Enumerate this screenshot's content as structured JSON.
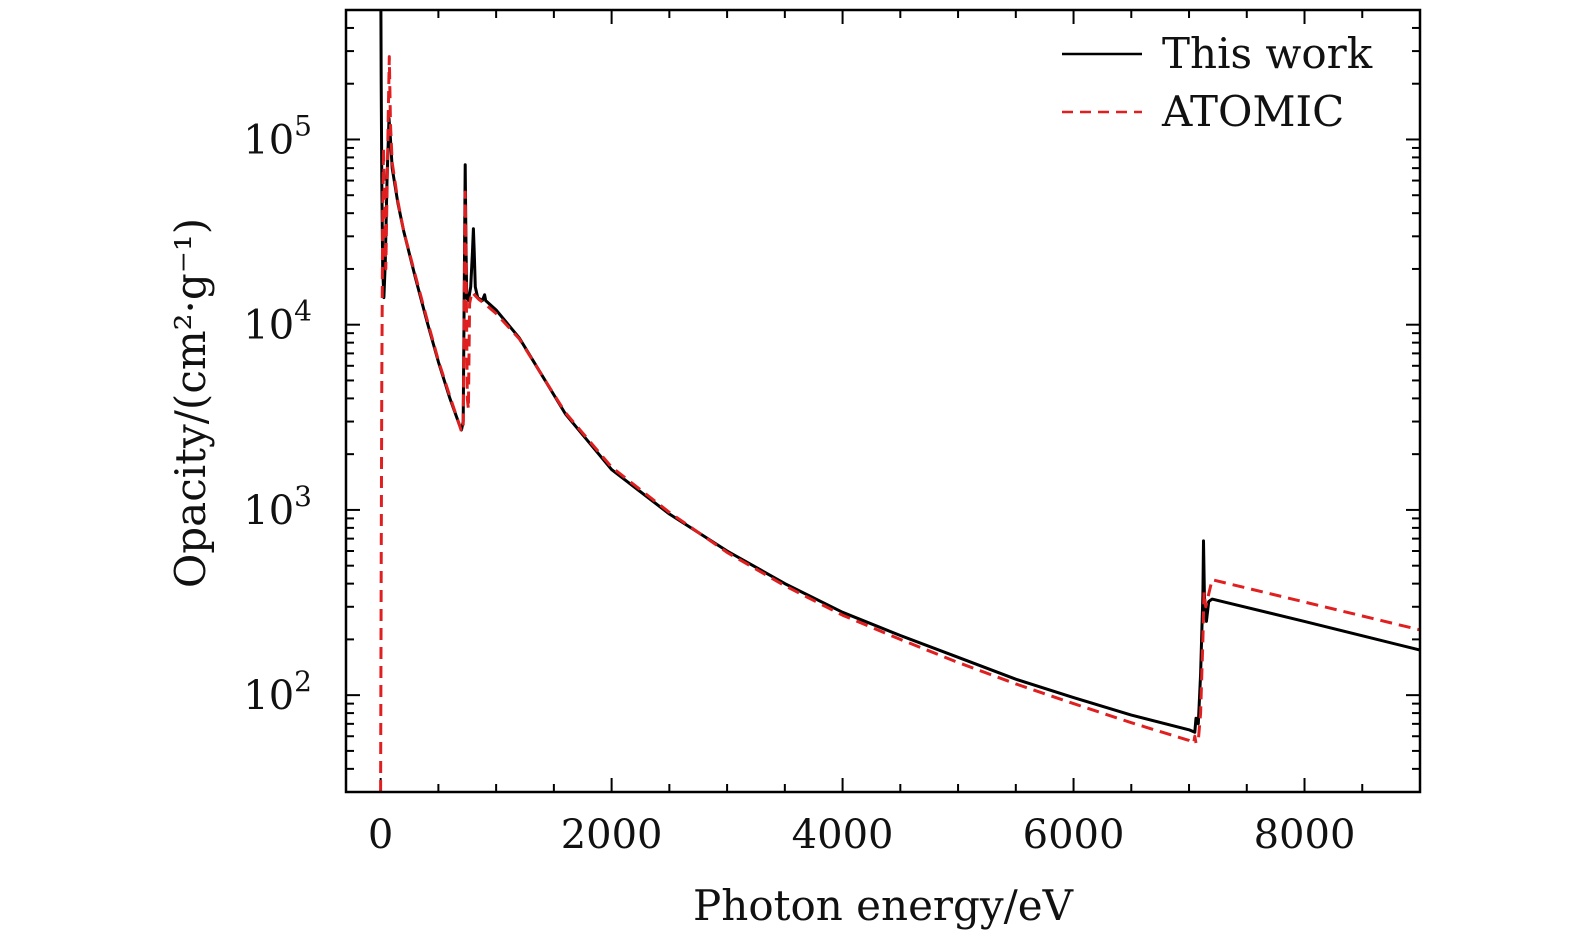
{
  "chart_data": {
    "type": "line",
    "title": "",
    "xlabel": "Photon energy/eV",
    "ylabel": "Opacity/(cm²·g⁻¹)",
    "y_scale": "log",
    "xlim": [
      -300,
      9000
    ],
    "ylim": [
      30,
      500000
    ],
    "x_ticks": [
      {
        "value": 0,
        "label": "0"
      },
      {
        "value": 2000,
        "label": "2000"
      },
      {
        "value": 4000,
        "label": "4000"
      },
      {
        "value": 6000,
        "label": "6000"
      },
      {
        "value": 8000,
        "label": "8000"
      }
    ],
    "y_ticks": [
      {
        "value": 100,
        "base": "10",
        "exp": "2"
      },
      {
        "value": 1000,
        "base": "10",
        "exp": "3"
      },
      {
        "value": 10000,
        "base": "10",
        "exp": "4"
      },
      {
        "value": 100000,
        "base": "10",
        "exp": "5"
      }
    ],
    "legend_position": "top-right",
    "series": [
      {
        "name": "This work",
        "color": "#000000",
        "style": "solid",
        "points": [
          [
            2,
            500000
          ],
          [
            5,
            200000
          ],
          [
            10,
            60000
          ],
          [
            18,
            20000
          ],
          [
            28,
            14000
          ],
          [
            40,
            22000
          ],
          [
            55,
            60000
          ],
          [
            72,
            130000
          ],
          [
            85,
            100000
          ],
          [
            100,
            70000
          ],
          [
            150,
            45000
          ],
          [
            200,
            32000
          ],
          [
            300,
            18000
          ],
          [
            400,
            10500
          ],
          [
            500,
            6300
          ],
          [
            600,
            4000
          ],
          [
            680,
            2900
          ],
          [
            700,
            2700
          ],
          [
            715,
            3000
          ],
          [
            725,
            20000
          ],
          [
            732,
            73000
          ],
          [
            738,
            30000
          ],
          [
            745,
            14000
          ],
          [
            760,
            13500
          ],
          [
            780,
            16000
          ],
          [
            795,
            25000
          ],
          [
            803,
            33000
          ],
          [
            810,
            25000
          ],
          [
            820,
            16000
          ],
          [
            840,
            14000
          ],
          [
            880,
            13500
          ],
          [
            900,
            14500
          ],
          [
            910,
            13500
          ],
          [
            1000,
            12000
          ],
          [
            1200,
            8500
          ],
          [
            1400,
            5300
          ],
          [
            1600,
            3300
          ],
          [
            2000,
            1650
          ],
          [
            2500,
            950
          ],
          [
            3000,
            600
          ],
          [
            3500,
            400
          ],
          [
            4000,
            280
          ],
          [
            4500,
            210
          ],
          [
            5000,
            160
          ],
          [
            5500,
            122
          ],
          [
            6000,
            97
          ],
          [
            6500,
            78
          ],
          [
            7000,
            65
          ],
          [
            7050,
            63
          ],
          [
            7060,
            75
          ],
          [
            7080,
            70
          ],
          [
            7100,
            130
          ],
          [
            7120,
            350
          ],
          [
            7125,
            680
          ],
          [
            7135,
            300
          ],
          [
            7150,
            250
          ],
          [
            7170,
            320
          ],
          [
            7200,
            330
          ],
          [
            8000,
            250
          ],
          [
            9000,
            175
          ]
        ]
      },
      {
        "name": "ATOMIC",
        "color": "#e02020",
        "style": "dashed",
        "points": [
          [
            0,
            30
          ],
          [
            5,
            500
          ],
          [
            10,
            5000
          ],
          [
            18,
            40000
          ],
          [
            25,
            90000
          ],
          [
            35,
            40000
          ],
          [
            45,
            20000
          ],
          [
            55,
            50000
          ],
          [
            65,
            130000
          ],
          [
            75,
            280000
          ],
          [
            85,
            120000
          ],
          [
            100,
            75000
          ],
          [
            150,
            46000
          ],
          [
            200,
            32000
          ],
          [
            300,
            18500
          ],
          [
            400,
            10800
          ],
          [
            500,
            6400
          ],
          [
            600,
            4100
          ],
          [
            680,
            2900
          ],
          [
            700,
            2650
          ],
          [
            715,
            2800
          ],
          [
            725,
            15000
          ],
          [
            732,
            52000
          ],
          [
            740,
            20000
          ],
          [
            750,
            4000
          ],
          [
            760,
            3500
          ],
          [
            770,
            13000
          ],
          [
            790,
            15000
          ],
          [
            850,
            13700
          ],
          [
            900,
            13000
          ],
          [
            1000,
            11500
          ],
          [
            1200,
            8400
          ],
          [
            1400,
            5300
          ],
          [
            1600,
            3350
          ],
          [
            2000,
            1700
          ],
          [
            2500,
            970
          ],
          [
            3000,
            590
          ],
          [
            3500,
            390
          ],
          [
            4000,
            270
          ],
          [
            4500,
            200
          ],
          [
            5000,
            150
          ],
          [
            5500,
            115
          ],
          [
            6000,
            90
          ],
          [
            6500,
            71
          ],
          [
            7000,
            57
          ],
          [
            7040,
            55
          ],
          [
            7050,
            60
          ],
          [
            7060,
            55
          ],
          [
            7080,
            57
          ],
          [
            7100,
            80
          ],
          [
            7120,
            200
          ],
          [
            7130,
            360
          ],
          [
            7145,
            300
          ],
          [
            7160,
            330
          ],
          [
            7200,
            420
          ],
          [
            9000,
            225
          ]
        ]
      }
    ]
  }
}
